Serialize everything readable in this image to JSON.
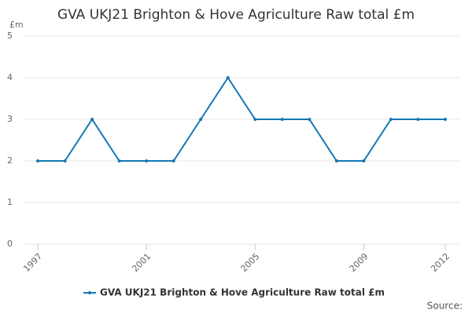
{
  "chart_data": {
    "type": "line",
    "title": "GVA UKJ21 Brighton & Hove Agriculture Raw total £m",
    "y_label": "£m",
    "source": "Source:",
    "x": [
      1997,
      1998,
      1999,
      2000,
      2001,
      2002,
      2003,
      2004,
      2005,
      2006,
      2007,
      2008,
      2009,
      2010,
      2011,
      2012
    ],
    "series": [
      {
        "name": "GVA UKJ21 Brighton & Hove Agriculture Raw total £m",
        "color": "#1478b4",
        "values": [
          2,
          2,
          3,
          2,
          2,
          2,
          3,
          4,
          3,
          3,
          3,
          2,
          2,
          3,
          3,
          3
        ]
      }
    ],
    "xlim": [
      1997,
      2012
    ],
    "xticks": [
      1997,
      2001,
      2005,
      2009,
      2012
    ],
    "ylim": [
      0,
      5
    ],
    "yticks": [
      0,
      1,
      2,
      3,
      4,
      5
    ],
    "grid": true,
    "legend": "bottom"
  }
}
